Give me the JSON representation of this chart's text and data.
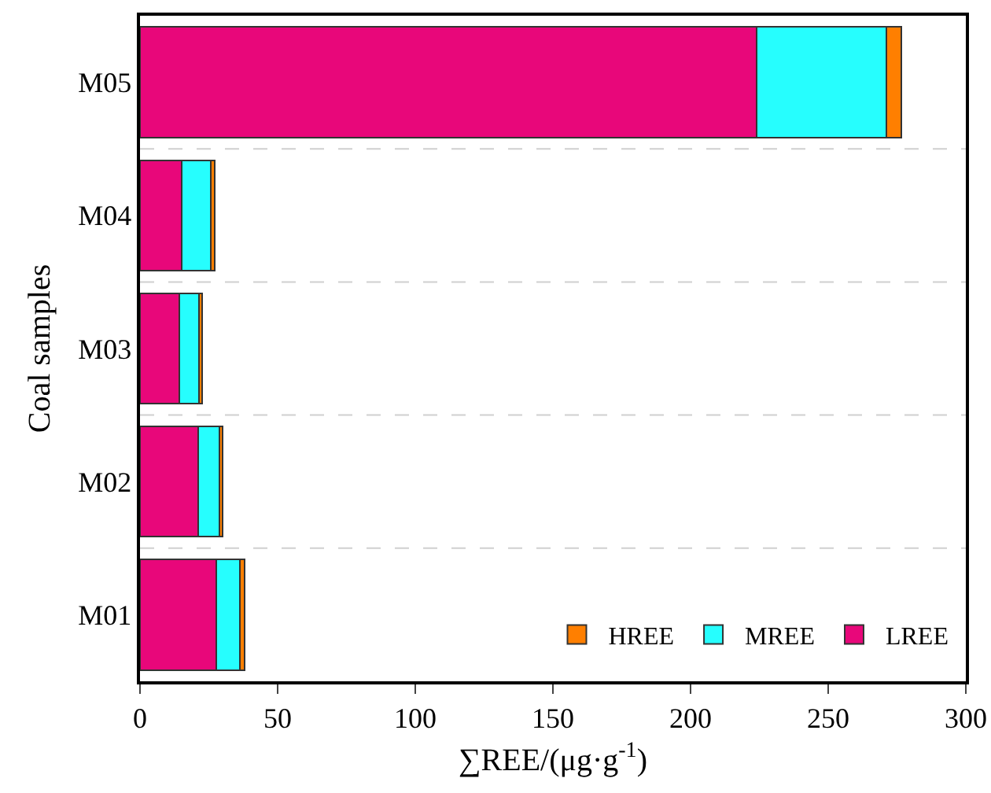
{
  "chart_data": {
    "type": "bar",
    "orientation": "horizontal",
    "stacked": true,
    "xlabel": "∑REE/(μg·g$^{-1}$)",
    "ylabel": "Coal samples",
    "categories": [
      "M05",
      "M04",
      "M03",
      "M02",
      "M01"
    ],
    "series": [
      {
        "name": "LREE",
        "color": "#e8077a",
        "values": [
          224,
          15.0,
          14.3,
          21.0,
          27.8
        ]
      },
      {
        "name": "MREE",
        "color": "#26fefe",
        "values": [
          47,
          10.7,
          7.2,
          7.8,
          8.6
        ]
      },
      {
        "name": "HREE",
        "color": "#ff7f00",
        "values": [
          5.5,
          1.5,
          1.2,
          1.1,
          1.5
        ]
      }
    ],
    "xlim": [
      0,
      300
    ],
    "xticks": [
      0,
      50,
      100,
      150,
      200,
      250,
      300
    ],
    "grid": "y",
    "legend": "bottom right"
  }
}
